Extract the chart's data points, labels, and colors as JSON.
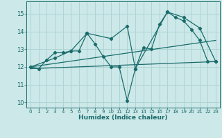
{
  "title": "",
  "xlabel": "Humidex (Indice chaleur)",
  "background_color": "#cce8e8",
  "grid_color": "#afd4d4",
  "line_color": "#1a6b6b",
  "xlim": [
    -0.5,
    23.5
  ],
  "ylim": [
    9.7,
    15.7
  ],
  "yticks": [
    10,
    11,
    12,
    13,
    14,
    15
  ],
  "xticks": [
    0,
    1,
    2,
    3,
    4,
    5,
    6,
    7,
    8,
    9,
    10,
    11,
    12,
    13,
    14,
    15,
    16,
    17,
    18,
    19,
    20,
    21,
    22,
    23
  ],
  "series1_x": [
    0,
    1,
    2,
    3,
    4,
    5,
    6,
    7,
    8,
    9,
    10,
    11,
    12,
    13,
    14,
    15,
    16,
    17,
    18,
    19,
    20,
    21,
    22,
    23
  ],
  "series1_y": [
    12.0,
    11.9,
    12.4,
    12.8,
    12.8,
    12.9,
    12.9,
    13.9,
    13.3,
    12.6,
    12.0,
    12.0,
    10.1,
    11.9,
    13.1,
    13.0,
    14.4,
    15.1,
    14.8,
    14.6,
    14.1,
    13.5,
    12.3,
    12.3
  ],
  "series2_x": [
    0,
    3,
    5,
    7,
    10,
    12,
    13,
    17,
    19,
    21,
    23
  ],
  "series2_y": [
    12.0,
    12.5,
    12.9,
    13.9,
    13.6,
    14.3,
    11.9,
    15.1,
    14.8,
    14.2,
    12.3
  ],
  "series3_x": [
    0,
    23
  ],
  "series3_y": [
    12.0,
    13.5
  ],
  "series4_x": [
    0,
    23
  ],
  "series4_y": [
    11.9,
    12.3
  ]
}
